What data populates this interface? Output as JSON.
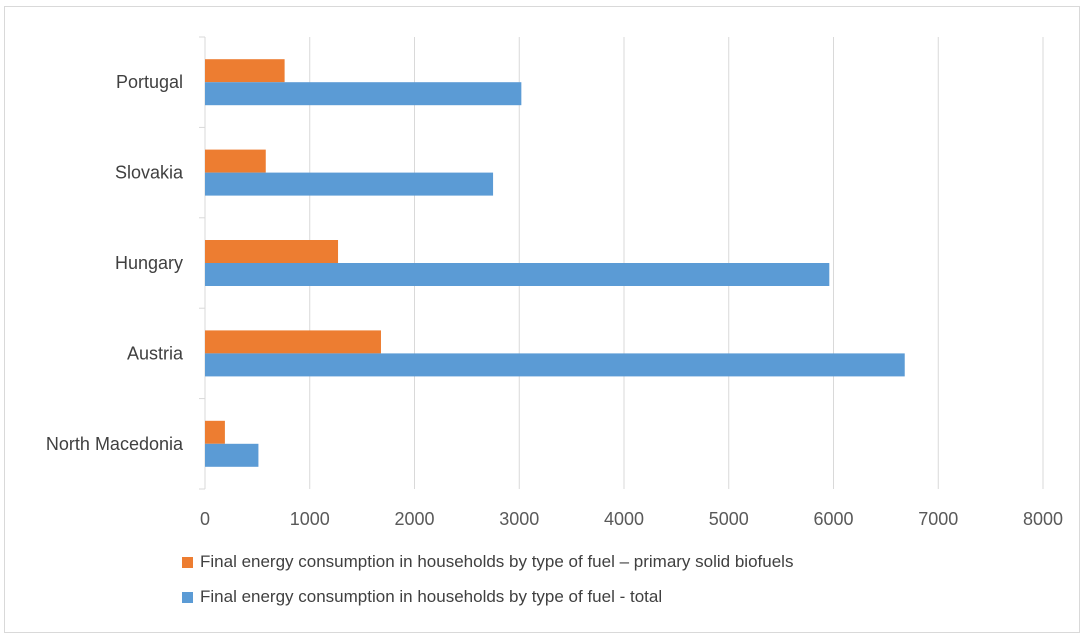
{
  "chart_data": {
    "type": "bar",
    "orientation": "horizontal",
    "categories": [
      "North Macedonia",
      "Austria",
      "Hungary",
      "Slovakia",
      "Portugal"
    ],
    "series": [
      {
        "name": "Final energy consumption in households by type of fuel – primary solid biofuels",
        "color": "#ed7d31",
        "values": [
          190,
          1680,
          1270,
          580,
          760
        ]
      },
      {
        "name": "Final energy consumption in households by type of fuel - total",
        "color": "#5b9bd5",
        "values": [
          510,
          6680,
          5960,
          2750,
          3020
        ]
      }
    ],
    "xlim": [
      0,
      8000
    ],
    "xticks": [
      0,
      1000,
      2000,
      3000,
      4000,
      5000,
      6000,
      7000,
      8000
    ],
    "grid": true,
    "legend_position": "bottom",
    "title": "",
    "xlabel": "",
    "ylabel": ""
  }
}
